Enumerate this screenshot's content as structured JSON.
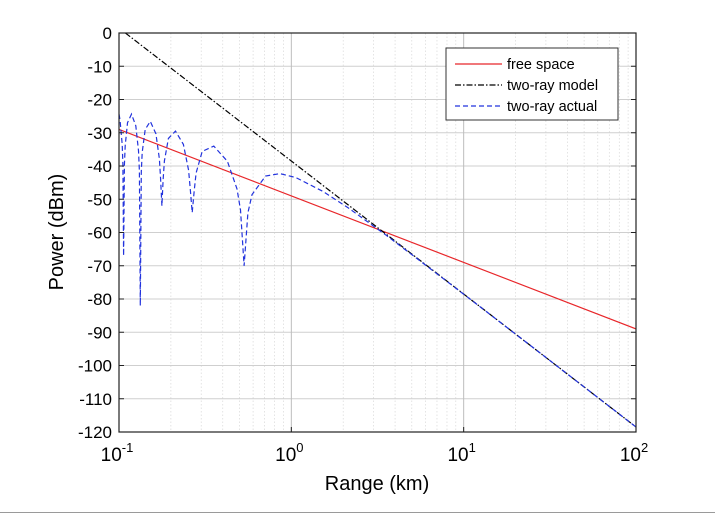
{
  "chart_data": {
    "type": "line",
    "title": "",
    "xlabel": "Range (km)",
    "ylabel": "Power (dBm)",
    "xscale": "log",
    "xlim": [
      0.1,
      100
    ],
    "ylim": [
      -120,
      0
    ],
    "x_ticks": [
      {
        "base": "10",
        "exp": "-1"
      },
      {
        "base": "10",
        "exp": "0"
      },
      {
        "base": "10",
        "exp": "1"
      },
      {
        "base": "10",
        "exp": "2"
      }
    ],
    "y_ticks": [
      "0",
      "-10",
      "-20",
      "-30",
      "-40",
      "-50",
      "-60",
      "-70",
      "-80",
      "-90",
      "-100",
      "-110",
      "-120"
    ],
    "grid": true,
    "legend_placement": "top-right",
    "series": [
      {
        "name": "free space",
        "color": "#e8262a",
        "style": "solid",
        "x": [
          0.1,
          100
        ],
        "y": [
          -29,
          -89
        ]
      },
      {
        "name": "two-ray model",
        "color": "#000000",
        "style": "dashdot",
        "x": [
          0.109,
          100
        ],
        "y": [
          0,
          -118.5
        ]
      },
      {
        "name": "two-ray actual",
        "color": "#2233dd",
        "style": "dashed",
        "x": [
          0.1,
          0.1013,
          0.1043,
          0.1053,
          0.1064,
          0.1075,
          0.1086,
          0.112,
          0.1182,
          0.1252,
          0.1298,
          0.1314,
          0.133,
          0.1347,
          0.1364,
          0.1419,
          0.152,
          0.1637,
          0.1716,
          0.1744,
          0.1773,
          0.1803,
          0.1834,
          0.1935,
          0.2128,
          0.2364,
          0.2533,
          0.2595,
          0.266,
          0.2728,
          0.28,
          0.304,
          0.3547,
          0.4256,
          0.4836,
          0.5067,
          0.532,
          0.56,
          0.591,
          0.709,
          0.858,
          1.064,
          1.52,
          2.128,
          3.547,
          5.32,
          10.64,
          26.6,
          100
        ],
        "y": [
          -24.4,
          -26.1,
          -33.5,
          -39.6,
          -67,
          -39.7,
          -33.9,
          -27.0,
          -24.4,
          -27.9,
          -35.4,
          -41.5,
          -82,
          -41.7,
          -35.9,
          -29.0,
          -26.6,
          -30.3,
          -37.9,
          -43.9,
          -52,
          -44.2,
          -38.5,
          -31.7,
          -29.5,
          -33.5,
          -41.3,
          -47.4,
          -54,
          -47.8,
          -42.1,
          -35.6,
          -34.0,
          -38.6,
          -46.9,
          -53.2,
          -70,
          -54.1,
          -48.6,
          -43.0,
          -42.3,
          -43.5,
          -47.6,
          -52.5,
          -60.8,
          -67.7,
          -79.6,
          -95.5,
          -118.5
        ]
      }
    ]
  }
}
